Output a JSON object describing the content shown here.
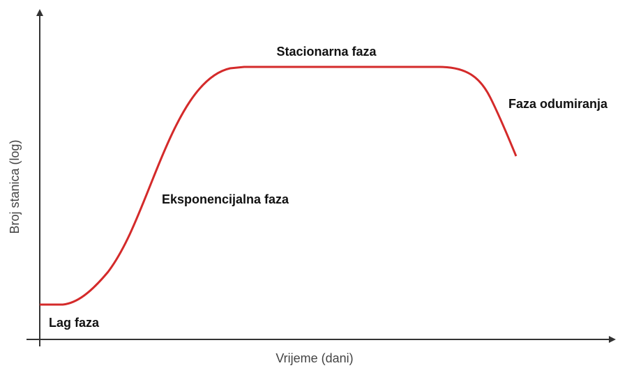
{
  "diagram": {
    "y_axis_label": "Broj stanica (log)",
    "x_axis_label": "Vrijeme (dani)",
    "phases": [
      "Lag faza",
      "Eksponencijalna faza",
      "Stacionarna faza",
      "Faza odumiranja"
    ]
  }
}
